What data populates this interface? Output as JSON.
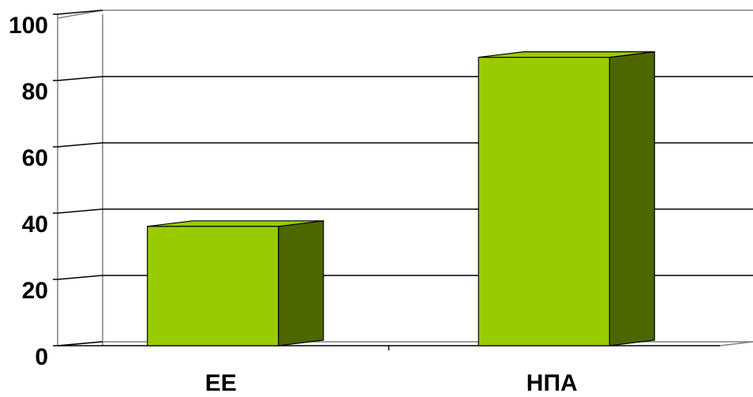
{
  "chart_data": {
    "type": "bar",
    "categories": [
      "ЕЕ",
      "НПА"
    ],
    "values": [
      36,
      87
    ],
    "ylim": [
      0,
      100
    ],
    "y_ticks": [
      "0",
      "20",
      "40",
      "60",
      "80",
      "100"
    ],
    "grid": true,
    "three_d": true,
    "colors": {
      "bar_front": "#99CC00",
      "bar_side": "#4D6600",
      "grid": "#000000",
      "wall_edge": "#808080"
    }
  }
}
